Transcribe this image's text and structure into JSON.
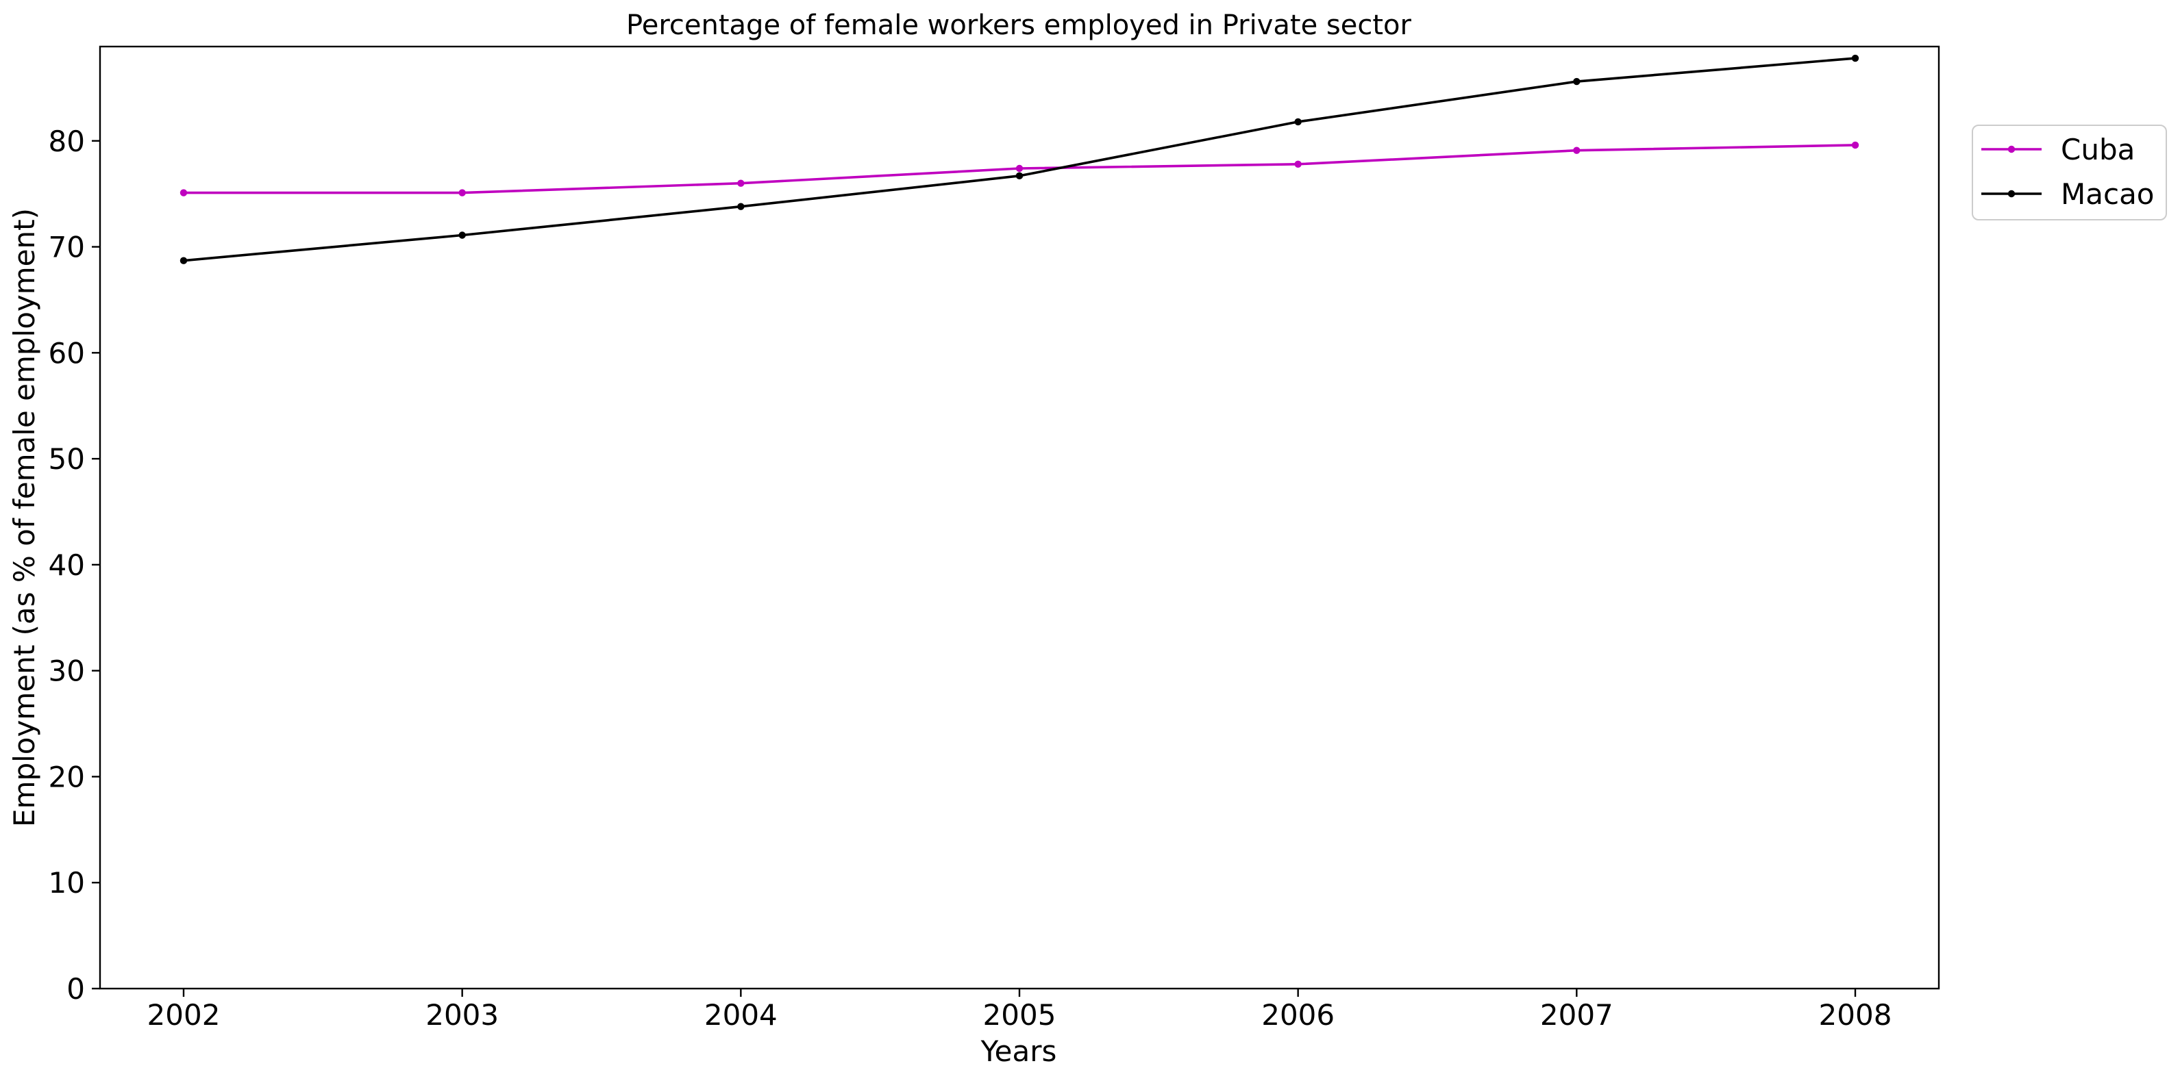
{
  "chart_data": {
    "type": "line",
    "title": "Percentage of female workers employed in Private sector",
    "xlabel": "Years",
    "ylabel": "Employment (as % of female employment)",
    "x": [
      2002,
      2003,
      2004,
      2005,
      2006,
      2007,
      2008
    ],
    "x_tick_labels": [
      "2002",
      "2003",
      "2004",
      "2005",
      "2006",
      "2007",
      "2008"
    ],
    "y_ticks": [
      0,
      10,
      20,
      30,
      40,
      50,
      60,
      70,
      80
    ],
    "y_tick_labels": [
      "0",
      "10",
      "20",
      "30",
      "40",
      "50",
      "60",
      "70",
      "80"
    ],
    "xlim": [
      2001.7,
      2008.3
    ],
    "ylim": [
      0,
      88.9
    ],
    "grid": false,
    "legend_position": "outside-top-right",
    "series": [
      {
        "name": "Cuba",
        "color": "#bf00bf",
        "marker": "circle",
        "values": [
          75.1,
          75.1,
          76.0,
          77.4,
          77.8,
          79.1,
          79.6
        ]
      },
      {
        "name": "Macao",
        "color": "#000000",
        "marker": "circle",
        "values": [
          68.7,
          71.1,
          73.8,
          76.7,
          81.8,
          85.6,
          87.8
        ]
      }
    ]
  }
}
